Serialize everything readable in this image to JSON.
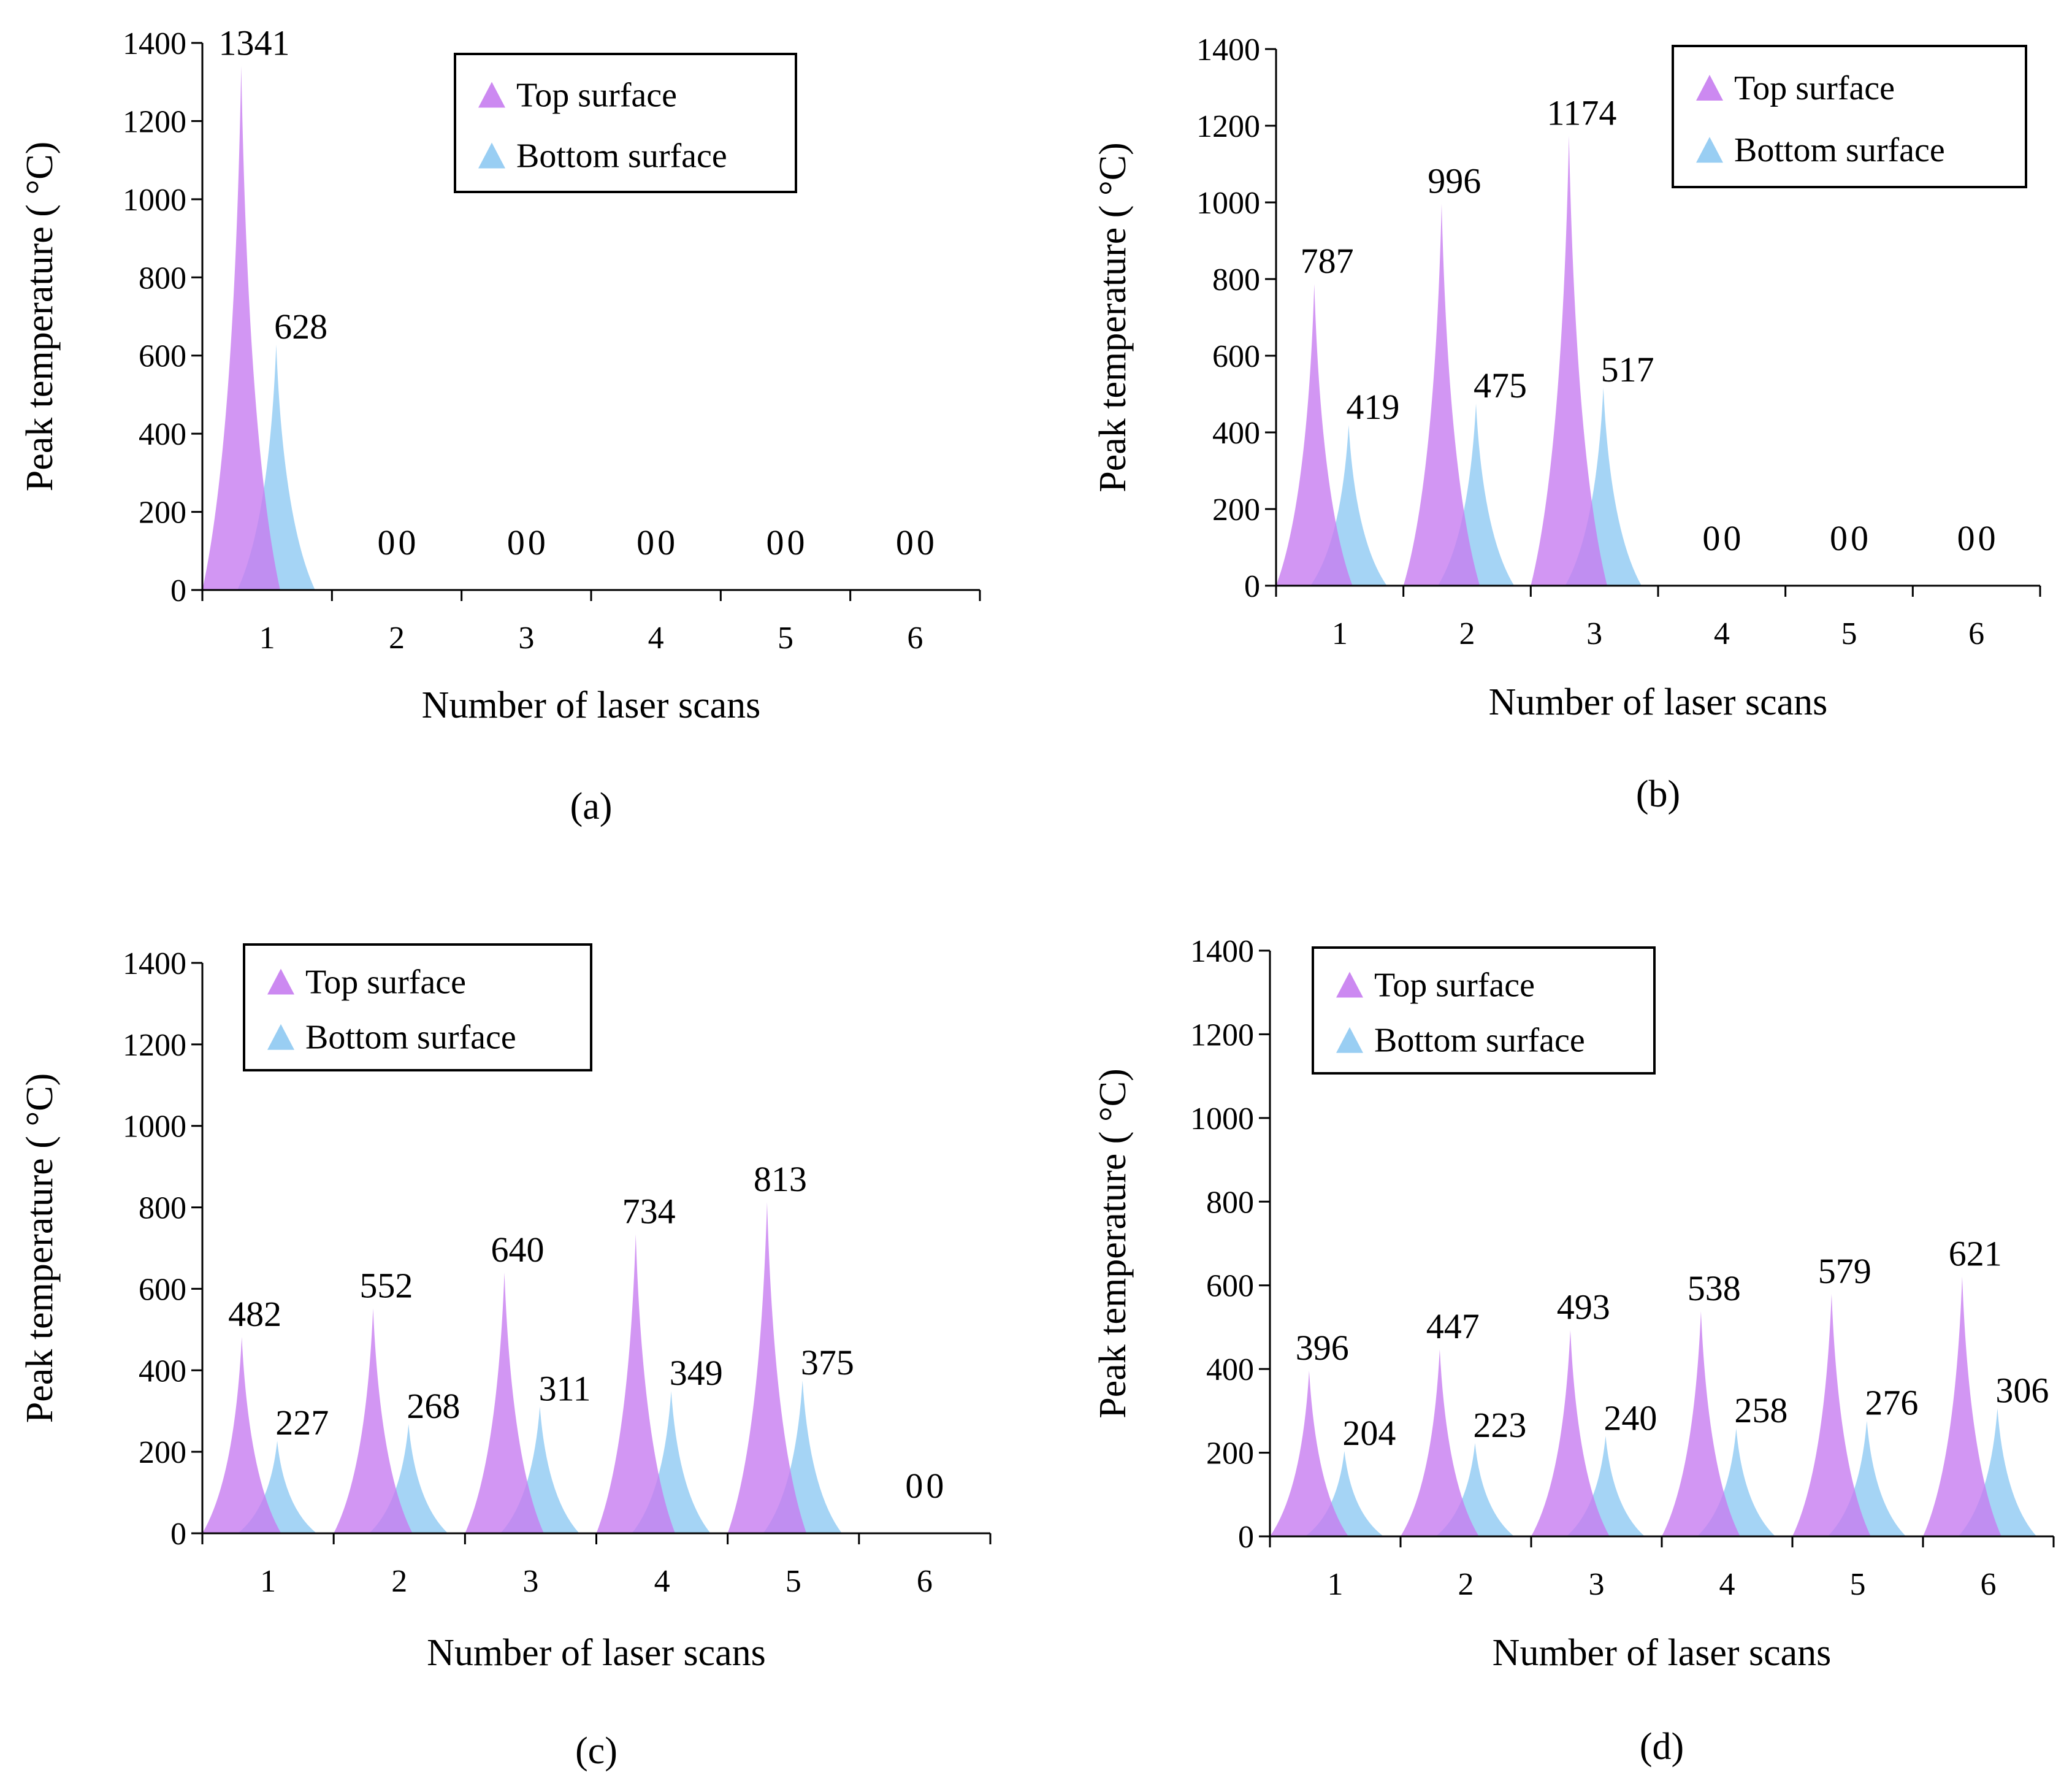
{
  "colors": {
    "top_surface": "#c77cf0",
    "bottom_surface": "#8ec9f2",
    "axis": "#000000",
    "background": "#ffffff"
  },
  "chart_data": [
    {
      "type": "area",
      "panel_label": "(a)",
      "title": "",
      "xlabel": "Number of laser scans",
      "ylabel": "Peak temperature ( °C)",
      "categories": [
        "1",
        "2",
        "3",
        "4",
        "5",
        "6"
      ],
      "ylim": [
        0,
        1400
      ],
      "yticks": [
        "0",
        "200",
        "400",
        "600",
        "800",
        "1000",
        "1200",
        "1400"
      ],
      "legend_position": "top-right",
      "series": [
        {
          "name": "Top surface",
          "values": [
            1341,
            0,
            0,
            0,
            0,
            0
          ]
        },
        {
          "name": "Bottom surface",
          "values": [
            628,
            0,
            0,
            0,
            0,
            0
          ]
        }
      ]
    },
    {
      "type": "area",
      "panel_label": "(b)",
      "title": "",
      "xlabel": "Number of laser scans",
      "ylabel": "Peak temperature ( °C)",
      "categories": [
        "1",
        "2",
        "3",
        "4",
        "5",
        "6"
      ],
      "ylim": [
        0,
        1400
      ],
      "yticks": [
        "0",
        "200",
        "400",
        "600",
        "800",
        "1000",
        "1200",
        "1400"
      ],
      "legend_position": "top-right",
      "series": [
        {
          "name": "Top surface",
          "values": [
            787,
            996,
            1174,
            0,
            0,
            0
          ]
        },
        {
          "name": "Bottom surface",
          "values": [
            419,
            475,
            517,
            0,
            0,
            0
          ]
        }
      ]
    },
    {
      "type": "area",
      "panel_label": "(c)",
      "title": "",
      "xlabel": "Number of laser scans",
      "ylabel": "Peak temperature ( °C)",
      "categories": [
        "1",
        "2",
        "3",
        "4",
        "5",
        "6"
      ],
      "ylim": [
        0,
        1400
      ],
      "yticks": [
        "0",
        "200",
        "400",
        "600",
        "800",
        "1000",
        "1200",
        "1400"
      ],
      "legend_position": "top-left",
      "series": [
        {
          "name": "Top surface",
          "values": [
            482,
            552,
            640,
            734,
            813,
            0
          ]
        },
        {
          "name": "Bottom surface",
          "values": [
            227,
            268,
            311,
            349,
            375,
            0
          ]
        }
      ]
    },
    {
      "type": "area",
      "panel_label": "(d)",
      "title": "",
      "xlabel": "Number of laser scans",
      "ylabel": "Peak temperature ( °C)",
      "categories": [
        "1",
        "2",
        "3",
        "4",
        "5",
        "6"
      ],
      "ylim": [
        0,
        1400
      ],
      "yticks": [
        "0",
        "200",
        "400",
        "600",
        "800",
        "1000",
        "1200",
        "1400"
      ],
      "legend_position": "top-left",
      "series": [
        {
          "name": "Top surface",
          "values": [
            396,
            447,
            493,
            538,
            579,
            621
          ]
        },
        {
          "name": "Bottom surface",
          "values": [
            204,
            223,
            240,
            258,
            276,
            306
          ]
        }
      ]
    }
  ]
}
